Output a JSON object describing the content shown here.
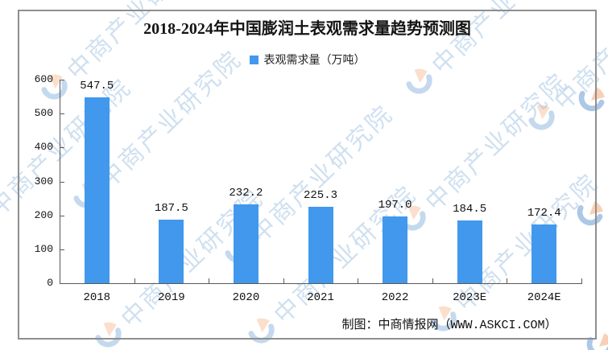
{
  "title": "2018-2024年中国膨润土表观需求量趋势预测图",
  "legend": {
    "label": "表观需求量（万吨）",
    "color": "#4198EC"
  },
  "chart_data": {
    "type": "bar",
    "title": "2018-2024年中国膨润土表观需求量趋势预测图",
    "categories": [
      "2018",
      "2019",
      "2020",
      "2021",
      "2022",
      "2023E",
      "2024E"
    ],
    "values": [
      547.5,
      187.5,
      232.2,
      225.3,
      197.0,
      184.5,
      172.4
    ],
    "data_labels": [
      "547.5",
      "187.5",
      "232.2",
      "225.3",
      "197.0",
      "184.5",
      "172.4"
    ],
    "series_name": "表观需求量（万吨）",
    "xlabel": "",
    "ylabel": "",
    "ylim": [
      0,
      600
    ],
    "yticks": [
      0,
      100,
      200,
      300,
      400,
      500,
      600
    ],
    "legend_position": "top",
    "grid": false,
    "bar_color": "#4198EC"
  },
  "footer": {
    "credit": "制图：中商情报网（WWW.ASKCI.COM）"
  },
  "watermark": {
    "text": "中商产业研究院"
  }
}
